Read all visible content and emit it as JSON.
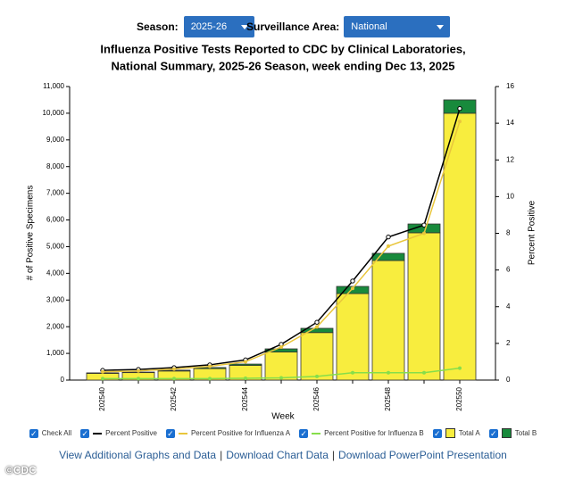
{
  "controls": {
    "season_label": "Season:",
    "season_value": "2025-26",
    "area_label": "Surveillance Area:",
    "area_value": "National"
  },
  "chart_data": {
    "type": "combo",
    "title": [
      "Influenza Positive Tests Reported to CDC by Clinical Laboratories,",
      "National Summary, 2025-26 Season, week ending Dec 13, 2025"
    ],
    "x_label": "Week",
    "y_label": "# of Positive Specimens",
    "y2_label": "Percent Positive",
    "categories": [
      "202540",
      null,
      "202542",
      null,
      "202544",
      null,
      "202546",
      null,
      "202548",
      null,
      "202550"
    ],
    "ylim": [
      0,
      11000
    ],
    "yticks": [
      0,
      {
        "value": 1000,
        "label": "1,000"
      },
      {
        "value": 2000,
        "label": "2,000"
      },
      {
        "value": 3000,
        "label": "3,000"
      },
      {
        "value": 4000,
        "label": "4,000"
      },
      {
        "value": 5000,
        "label": "5,000"
      },
      {
        "value": 6000,
        "label": "6,000"
      },
      {
        "value": 7000,
        "label": "7,000"
      },
      {
        "value": 8000,
        "label": "8,000"
      },
      {
        "value": 9000,
        "label": "9,000"
      },
      {
        "value": 10000,
        "label": "10,000"
      },
      {
        "value": 11000,
        "label": "11,000"
      }
    ],
    "y2lim": [
      0,
      16
    ],
    "y2ticks": [
      0,
      2,
      4,
      6,
      8,
      10,
      12,
      14,
      16
    ],
    "check_all": "Check All",
    "series": [
      {
        "name": "Percent Positive",
        "kind": "line",
        "axis": "y2",
        "color": "#000000",
        "values": [
          0.53,
          0.58,
          0.68,
          0.83,
          1.1,
          1.95,
          3.15,
          5.4,
          7.8,
          8.45,
          14.8
        ]
      },
      {
        "name": "Percent Positive for Influenza A",
        "kind": "line",
        "axis": "y2",
        "color": "#e9c63c",
        "values": [
          0.45,
          0.5,
          0.6,
          0.75,
          1.0,
          1.8,
          2.9,
          5.0,
          7.3,
          8.0,
          14.1
        ]
      },
      {
        "name": "Percent Positive for Influenza B",
        "kind": "line",
        "axis": "y2",
        "color": "#86de4a",
        "values": [
          0.08,
          0.08,
          0.08,
          0.08,
          0.1,
          0.12,
          0.2,
          0.4,
          0.4,
          0.4,
          0.65
        ]
      },
      {
        "name": "Total A",
        "kind": "bar",
        "color": "#f8ed3e",
        "values": [
          250,
          280,
          340,
          430,
          550,
          1050,
          1780,
          3240,
          4480,
          5520,
          10000
        ]
      },
      {
        "name": "Total B",
        "kind": "bar",
        "color": "#188a3c",
        "values": [
          20,
          20,
          30,
          40,
          50,
          120,
          160,
          270,
          270,
          330,
          500
        ]
      }
    ]
  },
  "links": {
    "items": [
      "View Additional Graphs and Data",
      "Download Chart Data",
      "Download PowerPoint Presentation"
    ],
    "separator": "|"
  },
  "watermark": "©CDC"
}
